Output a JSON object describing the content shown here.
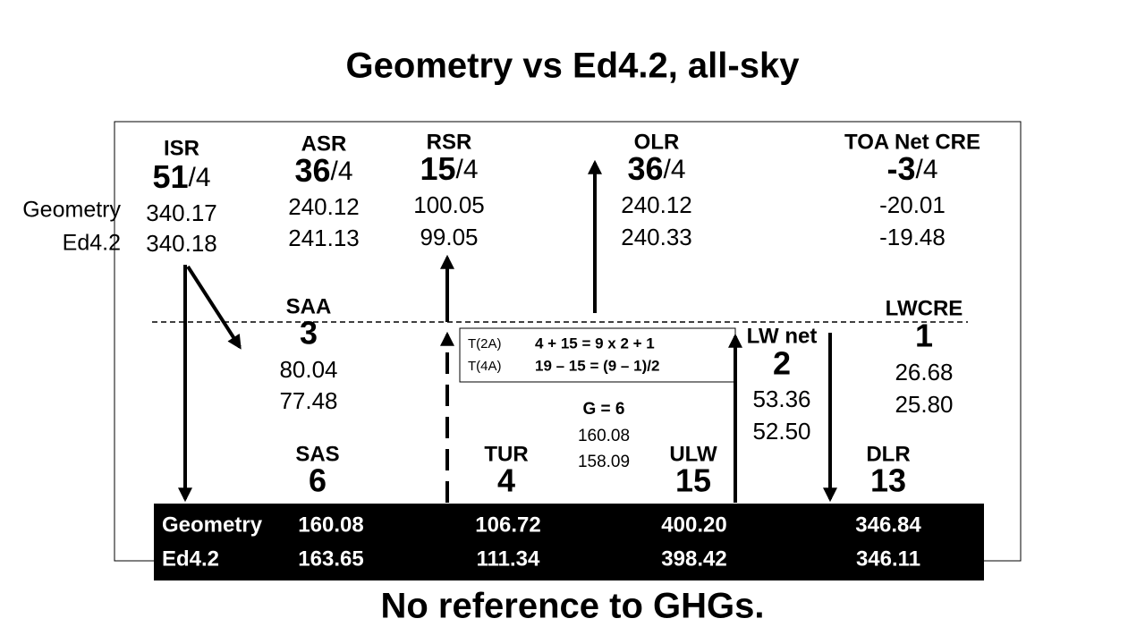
{
  "title": "Geometry vs Ed4.2, all-sky",
  "row_labels": [
    "Geometry",
    "Ed4.2"
  ],
  "top_items": [
    {
      "label": "ISR",
      "units": "51",
      "fraction": "/4",
      "geometry": "340.17",
      "ed42": "340.18"
    },
    {
      "label": "ASR",
      "units": "36",
      "fraction": "/4",
      "geometry": "240.12",
      "ed42": "241.13"
    },
    {
      "label": "RSR",
      "units": "15",
      "fraction": "/4",
      "geometry": "100.05",
      "ed42": "99.05"
    },
    {
      "label": "OLR",
      "units": "36",
      "fraction": "/4",
      "geometry": "240.12",
      "ed42": "240.33"
    },
    {
      "label": "TOA Net CRE",
      "units": "-3",
      "fraction": "/4",
      "geometry": "-20.01",
      "ed42": "-19.48"
    }
  ],
  "middle_items": [
    {
      "label": "SAA",
      "units": "3",
      "geometry": "80.04",
      "ed42": "77.48"
    },
    {
      "label": "LW net",
      "units": "2",
      "geometry": "53.36",
      "ed42": "52.50"
    },
    {
      "label": "LWCRE",
      "units": "1",
      "geometry": "26.68",
      "ed42": "25.80"
    }
  ],
  "equations": [
    {
      "label": "T(2A)",
      "text": "4 + 15 = 9 x 2 + 1"
    },
    {
      "label": "T(4A)",
      "text": "19 – 15 = (9 – 1)/2"
    }
  ],
  "g_box": {
    "label": "G = 6",
    "geometry": "160.08",
    "ed42": "158.09"
  },
  "surface_items": [
    {
      "label": "SAS",
      "units": "6"
    },
    {
      "label": "TUR",
      "units": "4"
    },
    {
      "label": "ULW",
      "units": "15"
    },
    {
      "label": "DLR",
      "units": "13"
    }
  ],
  "surface_table": {
    "rows": [
      [
        "Geometry",
        "160.08",
        "106.72",
        "400.20",
        "346.84"
      ],
      [
        "Ed4.2",
        "163.65",
        "111.34",
        "398.42",
        "346.11"
      ]
    ]
  },
  "footer": "No reference to GHGs."
}
